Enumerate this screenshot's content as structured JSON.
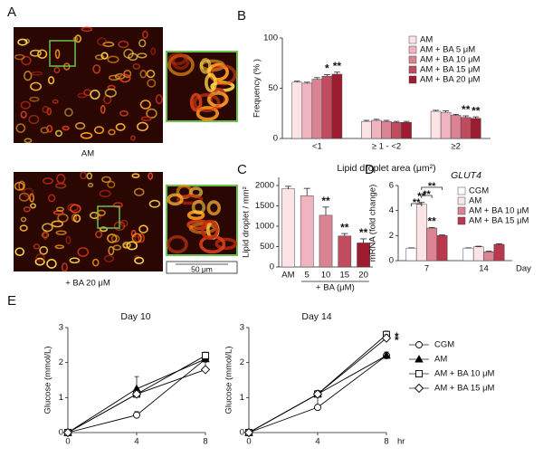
{
  "panel_a": {
    "label": "A",
    "captions": [
      "AM",
      "+ BA 20 μM"
    ],
    "scale_bar": "50 μm"
  },
  "chart_data": [
    {
      "type": "grouped_bar",
      "panel": "B",
      "categories": [
        "<1",
        "≥ 1 - <2",
        "≥2"
      ],
      "xlabel": "Lipid droplet area (μm²)",
      "ylabel": "Frequency (% )",
      "ylim": [
        0,
        100
      ],
      "yticks": [
        0,
        50,
        100
      ],
      "legend": "upper right",
      "series": [
        {
          "name": "AM",
          "color": "#fbe3e6",
          "values": [
            56,
            17,
            27
          ],
          "errors": [
            1,
            1,
            1
          ]
        },
        {
          "name": "AM + BA 5 μM",
          "color": "#efb4bf",
          "values": [
            55,
            18,
            26
          ],
          "errors": [
            1,
            1,
            1.5
          ]
        },
        {
          "name": "AM + BA 10 μM",
          "color": "#da8493",
          "values": [
            59,
            17,
            23
          ],
          "errors": [
            1.5,
            1,
            1
          ]
        },
        {
          "name": "AM + BA 15 μM",
          "color": "#c04c60",
          "values": [
            62,
            16,
            21
          ],
          "errors": [
            1.5,
            1,
            1.5
          ],
          "significance": [
            "*",
            null,
            "**"
          ]
        },
        {
          "name": "AM + BA 20 μM",
          "color": "#9e1c2f",
          "values": [
            64,
            16,
            20
          ],
          "errors": [
            2,
            1,
            1.5
          ],
          "significance": [
            "**",
            null,
            "**"
          ]
        }
      ]
    },
    {
      "type": "bar",
      "panel": "C",
      "categories": [
        "AM",
        "5",
        "10",
        "15",
        "20"
      ],
      "group_label": "+ BA (μM)",
      "ylabel": "Lipid droplet / mm²",
      "ylim": [
        0,
        2200
      ],
      "yticks": [
        0,
        500,
        1000,
        1500,
        2000
      ],
      "colors": [
        "#fbe3e6",
        "#efb4bf",
        "#da8493",
        "#c04c60",
        "#9e1c2f"
      ],
      "values": [
        1920,
        1750,
        1270,
        760,
        590
      ],
      "errors": [
        60,
        180,
        200,
        60,
        100
      ],
      "significance": [
        null,
        null,
        "**",
        "**",
        "**"
      ]
    },
    {
      "type": "grouped_bar",
      "panel": "D",
      "title": "GLUT4",
      "categories": [
        "7",
        "14"
      ],
      "xlabel": "Day",
      "ylabel": "mRNA (fold change)",
      "ylim": [
        0,
        6
      ],
      "yticks": [
        0,
        2,
        4,
        6
      ],
      "legend": "upper right",
      "brackets": [
        "**",
        "**",
        "**"
      ],
      "series": [
        {
          "name": "CGM",
          "color": "#ffffff",
          "values": [
            1,
            1
          ],
          "errors": [
            0.02,
            0.02
          ]
        },
        {
          "name": "AM",
          "color": "#fbe3e6",
          "values": [
            4.5,
            1.1
          ],
          "errors": [
            0.15,
            0.05
          ],
          "significance": [
            "**",
            null
          ]
        },
        {
          "name": "AM + BA 10 μM",
          "color": "#da8493",
          "values": [
            2.6,
            0.7
          ],
          "errors": [
            0.05,
            0.05
          ],
          "significance": [
            "**",
            null
          ]
        },
        {
          "name": "AM + BA 15 μM",
          "color": "#b8384d",
          "values": [
            2.0,
            1.3
          ],
          "errors": [
            0.05,
            0.05
          ]
        }
      ]
    },
    {
      "type": "line",
      "panel": "E",
      "x": [
        0,
        4,
        8
      ],
      "xlim": [
        0,
        8
      ],
      "xticks": [
        0,
        4,
        8
      ],
      "xlabel": "hr",
      "ylabel": "Glucose (mmol/L)",
      "ylim": [
        0,
        3
      ],
      "yticks": [
        0,
        1,
        2,
        3
      ],
      "legend": "right",
      "series": [
        {
          "name": "CGM",
          "marker": "circle",
          "color": "#000000"
        },
        {
          "name": "AM",
          "marker": "triangle",
          "color": "#000000"
        },
        {
          "name": "AM + BA 10 μM",
          "marker": "square",
          "color": "#000000"
        },
        {
          "name": "AM + BA 15 μM",
          "marker": "diamond",
          "color": "#000000"
        }
      ],
      "panels": [
        {
          "title": "Day 10",
          "series": [
            {
              "values": [
                0,
                0.5,
                2.1
              ],
              "errors": [
                0,
                0.1,
                0.15
              ]
            },
            {
              "values": [
                0,
                1.25,
                2.1
              ],
              "errors": [
                0,
                0.35,
                0.1
              ]
            },
            {
              "values": [
                0,
                1.1,
                2.2
              ],
              "errors": [
                0,
                0.1,
                0.1
              ]
            },
            {
              "values": [
                0,
                1.1,
                1.8
              ],
              "errors": [
                0,
                0.1,
                0.3
              ]
            }
          ]
        },
        {
          "title": "Day 14",
          "series": [
            {
              "values": [
                0,
                0.72,
                2.2
              ],
              "errors": [
                0,
                0.4,
                0.1
              ]
            },
            {
              "values": [
                0,
                1.1,
                2.2
              ],
              "errors": [
                0,
                0.1,
                0.1
              ]
            },
            {
              "values": [
                0,
                1.1,
                2.8
              ],
              "errors": [
                0,
                0.1,
                0.1
              ],
              "significance": [
                null,
                null,
                "*"
              ]
            },
            {
              "values": [
                0,
                1.1,
                2.7
              ],
              "errors": [
                0,
                0.1,
                0.1
              ],
              "significance": [
                null,
                null,
                "*"
              ]
            }
          ]
        }
      ]
    }
  ]
}
